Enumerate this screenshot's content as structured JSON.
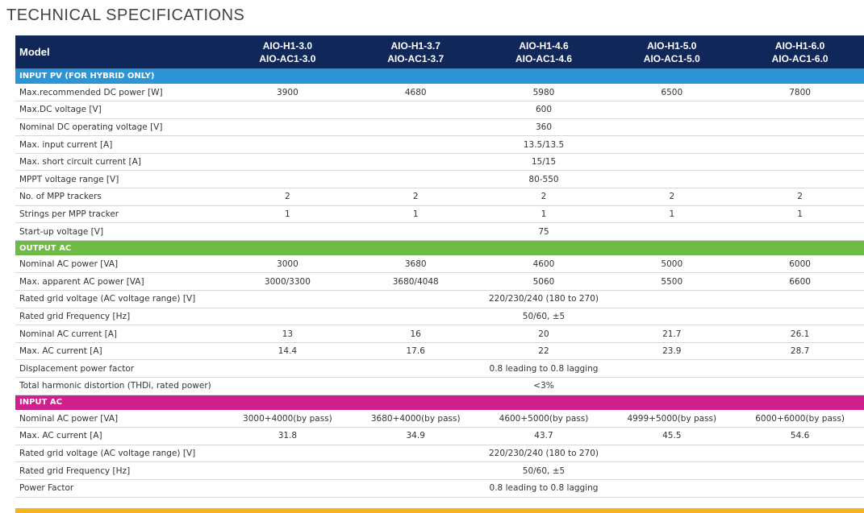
{
  "title": "TECHNICAL SPECIFICATIONS",
  "colors": {
    "header_bg": "#10275a",
    "input_pv": "#2b95d5",
    "output_ac": "#6dbb45",
    "input_ac": "#d0208c",
    "next_section": "#f5b324"
  },
  "header": {
    "label": "Model",
    "models": [
      {
        "line1": "AIO-H1-3.0",
        "line2": "AIO-AC1-3.0"
      },
      {
        "line1": "AIO-H1-3.7",
        "line2": "AIO-AC1-3.7"
      },
      {
        "line1": "AIO-H1-4.6",
        "line2": "AIO-AC1-4.6"
      },
      {
        "line1": "AIO-H1-5.0",
        "line2": "AIO-AC1-5.0"
      },
      {
        "line1": "AIO-H1-6.0",
        "line2": "AIO-AC1-6.0"
      }
    ]
  },
  "sections": [
    {
      "title": "INPUT PV (FOR HYBRID ONLY)",
      "color": "#2b95d5",
      "rows": [
        {
          "label": "Max.recommended DC power [W]",
          "values": [
            "3900",
            "4680",
            "5980",
            "6500",
            "7800"
          ]
        },
        {
          "label": "Max.DC voltage [V]",
          "value": "600"
        },
        {
          "label": "Nominal DC operating voltage [V]",
          "value": "360"
        },
        {
          "label": "Max. input current [A]",
          "value": "13.5/13.5"
        },
        {
          "label": "Max. short circuit current [A]",
          "value": "15/15"
        },
        {
          "label": "MPPT voltage range [V]",
          "value": "80-550"
        },
        {
          "label": "No. of MPP trackers",
          "values": [
            "2",
            "2",
            "2",
            "2",
            "2"
          ]
        },
        {
          "label": "Strings per MPP tracker",
          "values": [
            "1",
            "1",
            "1",
            "1",
            "1"
          ]
        },
        {
          "label": "Start-up voltage [V]",
          "value": "75"
        }
      ]
    },
    {
      "title": "OUTPUT AC",
      "color": "#6dbb45",
      "rows": [
        {
          "label": "Nominal AC power [VA]",
          "values": [
            "3000",
            "3680",
            "4600",
            "5000",
            "6000"
          ]
        },
        {
          "label": "Max. apparent AC power [VA]",
          "values": [
            "3000/3300",
            "3680/4048",
            "5060",
            "5500",
            "6600"
          ]
        },
        {
          "label": "Rated grid voltage (AC voltage range) [V]",
          "value": "220/230/240 (180  to 270)"
        },
        {
          "label": "Rated grid Frequency [Hz]",
          "value": "50/60, ±5"
        },
        {
          "label": "Nominal AC current [A]",
          "values": [
            "13",
            "16",
            "20",
            "21.7",
            "26.1"
          ]
        },
        {
          "label": "Max. AC current [A]",
          "values": [
            "14.4",
            "17.6",
            "22",
            "23.9",
            "28.7"
          ]
        },
        {
          "label": "Displacement power factor",
          "value": "0.8 leading to 0.8 lagging"
        },
        {
          "label": "Total harmonic distortion (THDi, rated power)",
          "value": "<3%"
        }
      ]
    },
    {
      "title": "INPUT AC",
      "color": "#d0208c",
      "rows": [
        {
          "label": "Nominal AC power [VA]",
          "values": [
            "3000+4000(by pass)",
            "3680+4000(by pass)",
            "4600+5000(by pass)",
            "4999+5000(by pass)",
            "6000+6000(by pass)"
          ]
        },
        {
          "label": "Max. AC current [A]",
          "values": [
            "31.8",
            "34.9",
            "43.7",
            "45.5",
            "54.6"
          ]
        },
        {
          "label": "Rated grid voltage (AC voltage range) [V]",
          "value": "220/230/240  (180  to 270)"
        },
        {
          "label": "Rated grid Frequency [Hz]",
          "value": "50/60, ±5"
        },
        {
          "label": "Power Factor",
          "value": "0.8 leading to 0.8 lagging"
        }
      ]
    }
  ]
}
